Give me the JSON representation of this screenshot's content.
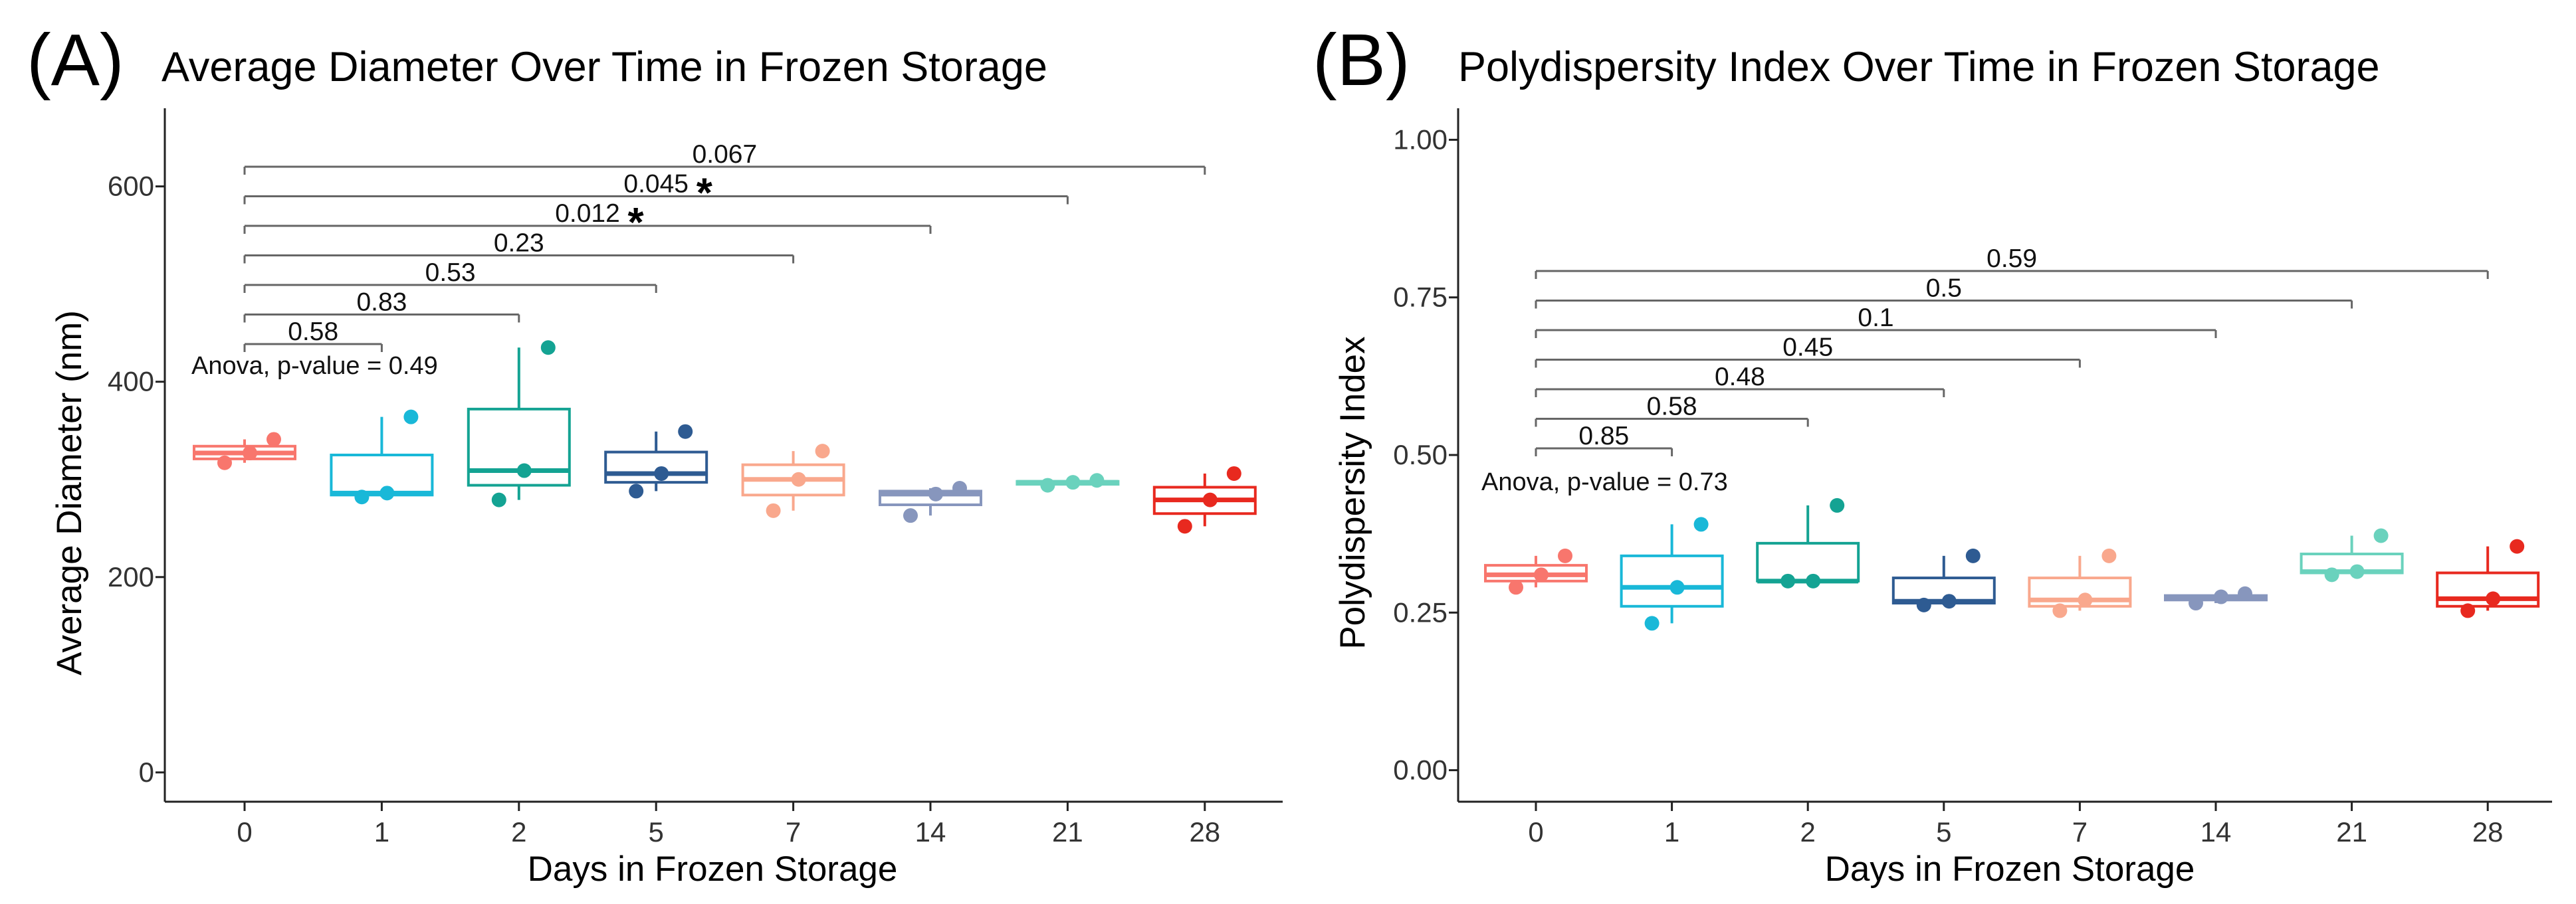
{
  "panels": [
    {
      "label": "(A)",
      "chart_data": {
        "type": "boxplot",
        "title": "Average Diameter Over Time in Frozen Storage",
        "xlabel": "Days in Frozen Storage",
        "ylabel": "Average Diameter (nm)",
        "ylim": [
          -30,
          680
        ],
        "yticks": [
          "0",
          "200",
          "400",
          "600"
        ],
        "ytick_values": [
          0,
          200,
          400,
          600
        ],
        "categories": [
          "0",
          "1",
          "2",
          "5",
          "7",
          "14",
          "21",
          "28"
        ],
        "colors": [
          "#f8766d",
          "#19b8d8",
          "#14a393",
          "#2e5b92",
          "#f9a88d",
          "#8796bd",
          "#6ad2bd",
          "#e8291f"
        ],
        "boxes": [
          {
            "lo": 317,
            "q1": 321,
            "med": 327,
            "q3": 334,
            "hi": 341
          },
          {
            "lo": 282,
            "q1": 284,
            "med": 286,
            "q3": 325,
            "hi": 364
          },
          {
            "lo": 279,
            "q1": 294,
            "med": 309,
            "q3": 372,
            "hi": 435
          },
          {
            "lo": 288,
            "q1": 297,
            "med": 306,
            "q3": 328,
            "hi": 349
          },
          {
            "lo": 268,
            "q1": 284,
            "med": 300,
            "q3": 315,
            "hi": 329
          },
          {
            "lo": 263,
            "q1": 274,
            "med": 285,
            "q3": 288,
            "hi": 291
          },
          {
            "lo": 294,
            "q1": 295,
            "med": 297,
            "q3": 298,
            "hi": 299
          },
          {
            "lo": 252,
            "q1": 265,
            "med": 279,
            "q3": 292,
            "hi": 306
          }
        ],
        "points": [
          [
            317,
            327,
            341
          ],
          [
            282,
            286,
            364
          ],
          [
            279,
            309,
            435
          ],
          [
            288,
            306,
            349
          ],
          [
            268,
            300,
            329
          ],
          [
            263,
            285,
            291
          ],
          [
            294,
            297,
            299
          ],
          [
            252,
            279,
            306
          ]
        ],
        "comparisons": [
          {
            "to": "1",
            "label": "0.58",
            "star": ""
          },
          {
            "to": "2",
            "label": "0.83",
            "star": ""
          },
          {
            "to": "5",
            "label": "0.53",
            "star": ""
          },
          {
            "to": "7",
            "label": "0.23",
            "star": ""
          },
          {
            "to": "14",
            "label": "0.012",
            "star": "*"
          },
          {
            "to": "21",
            "label": "0.045",
            "star": "*"
          },
          {
            "to": "28",
            "label": "0.067",
            "star": ""
          }
        ],
        "anova": "Anova, p-value = 0.49"
      }
    },
    {
      "label": "(B)",
      "chart_data": {
        "type": "boxplot",
        "title": "Polydispersity Index Over Time in Frozen Storage",
        "xlabel": "Days in Frozen Storage",
        "ylabel": "Polydispersity Index",
        "ylim": [
          -0.05,
          1.05
        ],
        "yticks": [
          "0.00",
          "0.25",
          "0.50",
          "0.75",
          "1.00"
        ],
        "ytick_values": [
          0,
          0.25,
          0.5,
          0.75,
          1.0
        ],
        "categories": [
          "0",
          "1",
          "2",
          "5",
          "7",
          "14",
          "21",
          "28"
        ],
        "colors": [
          "#f8766d",
          "#19b8d8",
          "#14a393",
          "#2e5b92",
          "#f9a88d",
          "#8796bd",
          "#6ad2bd",
          "#e8291f"
        ],
        "boxes": [
          {
            "lo": 0.29,
            "q1": 0.3,
            "med": 0.31,
            "q3": 0.325,
            "hi": 0.34
          },
          {
            "lo": 0.233,
            "q1": 0.26,
            "med": 0.29,
            "q3": 0.34,
            "hi": 0.39
          },
          {
            "lo": 0.3,
            "q1": 0.3,
            "med": 0.3,
            "q3": 0.36,
            "hi": 0.42
          },
          {
            "lo": 0.262,
            "q1": 0.265,
            "med": 0.268,
            "q3": 0.305,
            "hi": 0.34
          },
          {
            "lo": 0.253,
            "q1": 0.26,
            "med": 0.27,
            "q3": 0.305,
            "hi": 0.34
          },
          {
            "lo": 0.265,
            "q1": 0.27,
            "med": 0.275,
            "q3": 0.277,
            "hi": 0.28
          },
          {
            "lo": 0.31,
            "q1": 0.313,
            "med": 0.315,
            "q3": 0.343,
            "hi": 0.372
          },
          {
            "lo": 0.253,
            "q1": 0.26,
            "med": 0.272,
            "q3": 0.313,
            "hi": 0.355
          }
        ],
        "points": [
          [
            0.29,
            0.31,
            0.34
          ],
          [
            0.233,
            0.29,
            0.39
          ],
          [
            0.3,
            0.3,
            0.42
          ],
          [
            0.262,
            0.268,
            0.34
          ],
          [
            0.253,
            0.27,
            0.34
          ],
          [
            0.265,
            0.275,
            0.28
          ],
          [
            0.31,
            0.315,
            0.372
          ],
          [
            0.253,
            0.272,
            0.355
          ]
        ],
        "comparisons": [
          {
            "to": "1",
            "label": "0.85",
            "star": ""
          },
          {
            "to": "2",
            "label": "0.58",
            "star": ""
          },
          {
            "to": "5",
            "label": "0.48",
            "star": ""
          },
          {
            "to": "7",
            "label": "0.45",
            "star": ""
          },
          {
            "to": "14",
            "label": "0.1",
            "star": ""
          },
          {
            "to": "21",
            "label": "0.5",
            "star": ""
          },
          {
            "to": "28",
            "label": "0.59",
            "star": ""
          }
        ],
        "anova": "Anova, p-value = 0.73"
      }
    }
  ]
}
